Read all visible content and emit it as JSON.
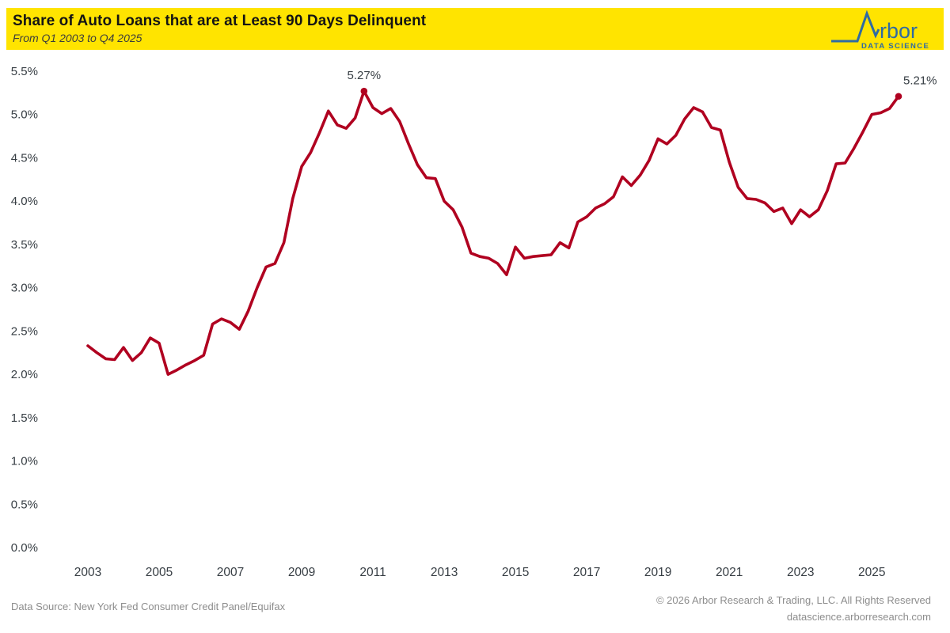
{
  "header": {
    "title": "Share of Auto Loans that are at Least 90 Days Delinquent",
    "subtitle": "From Q1 2003 to Q4 2025",
    "background_color": "#ffe400"
  },
  "logo": {
    "word": "rbor",
    "tagline": "DATA SCIENCE",
    "color": "#2f6ba3"
  },
  "chart_data": {
    "type": "line",
    "title": "Share of Auto Loans that are at Least 90 Days Delinquent",
    "series_name": "Share of auto loans 90+ days delinquent",
    "unit": "percent",
    "x_period": "quarterly from Q1 2003 to Q4 2025",
    "x_start": "2003-Q1",
    "x_end": "2025-Q4",
    "values": [
      2.33,
      2.25,
      2.18,
      2.17,
      2.31,
      2.16,
      2.25,
      2.42,
      2.36,
      2.0,
      2.05,
      2.11,
      2.16,
      2.22,
      2.58,
      2.64,
      2.6,
      2.52,
      2.73,
      3.0,
      3.24,
      3.28,
      3.52,
      4.03,
      4.4,
      4.56,
      4.79,
      5.04,
      4.88,
      4.84,
      4.96,
      5.27,
      5.08,
      5.01,
      5.07,
      4.92,
      4.66,
      4.42,
      4.27,
      4.26,
      4.0,
      3.9,
      3.7,
      3.4,
      3.36,
      3.34,
      3.28,
      3.15,
      3.47,
      3.34,
      3.36,
      3.37,
      3.38,
      3.52,
      3.46,
      3.76,
      3.82,
      3.92,
      3.97,
      4.05,
      4.28,
      4.18,
      4.3,
      4.47,
      4.72,
      4.66,
      4.76,
      4.95,
      5.08,
      5.03,
      4.85,
      4.82,
      4.45,
      4.16,
      4.03,
      4.02,
      3.98,
      3.88,
      3.92,
      3.74,
      3.9,
      3.82,
      3.9,
      4.12,
      4.43,
      4.44,
      4.61,
      4.8,
      5.0,
      5.02,
      5.07,
      5.21
    ],
    "ylim": [
      0,
      5.5
    ],
    "y_ticks": [
      "0.0%",
      "0.5%",
      "1.0%",
      "1.5%",
      "2.0%",
      "2.5%",
      "3.0%",
      "3.5%",
      "4.0%",
      "4.5%",
      "5.0%",
      "5.5%"
    ],
    "x_ticks": [
      "2003",
      "2005",
      "2007",
      "2009",
      "2011",
      "2013",
      "2015",
      "2017",
      "2019",
      "2021",
      "2023",
      "2025"
    ],
    "grid": false,
    "legend": "none",
    "line_color": "#b00120",
    "annotations": [
      {
        "label": "5.27%",
        "index": 31,
        "placement": "above"
      },
      {
        "label": "5.21%",
        "index": 91,
        "placement": "right"
      }
    ]
  },
  "footer": {
    "source": "Data Source: New York Fed Consumer Credit Panel/Equifax",
    "copyright": "© 2026 Arbor Research & Trading, LLC. All Rights Reserved",
    "website": "datascience.arborresearch.com"
  }
}
